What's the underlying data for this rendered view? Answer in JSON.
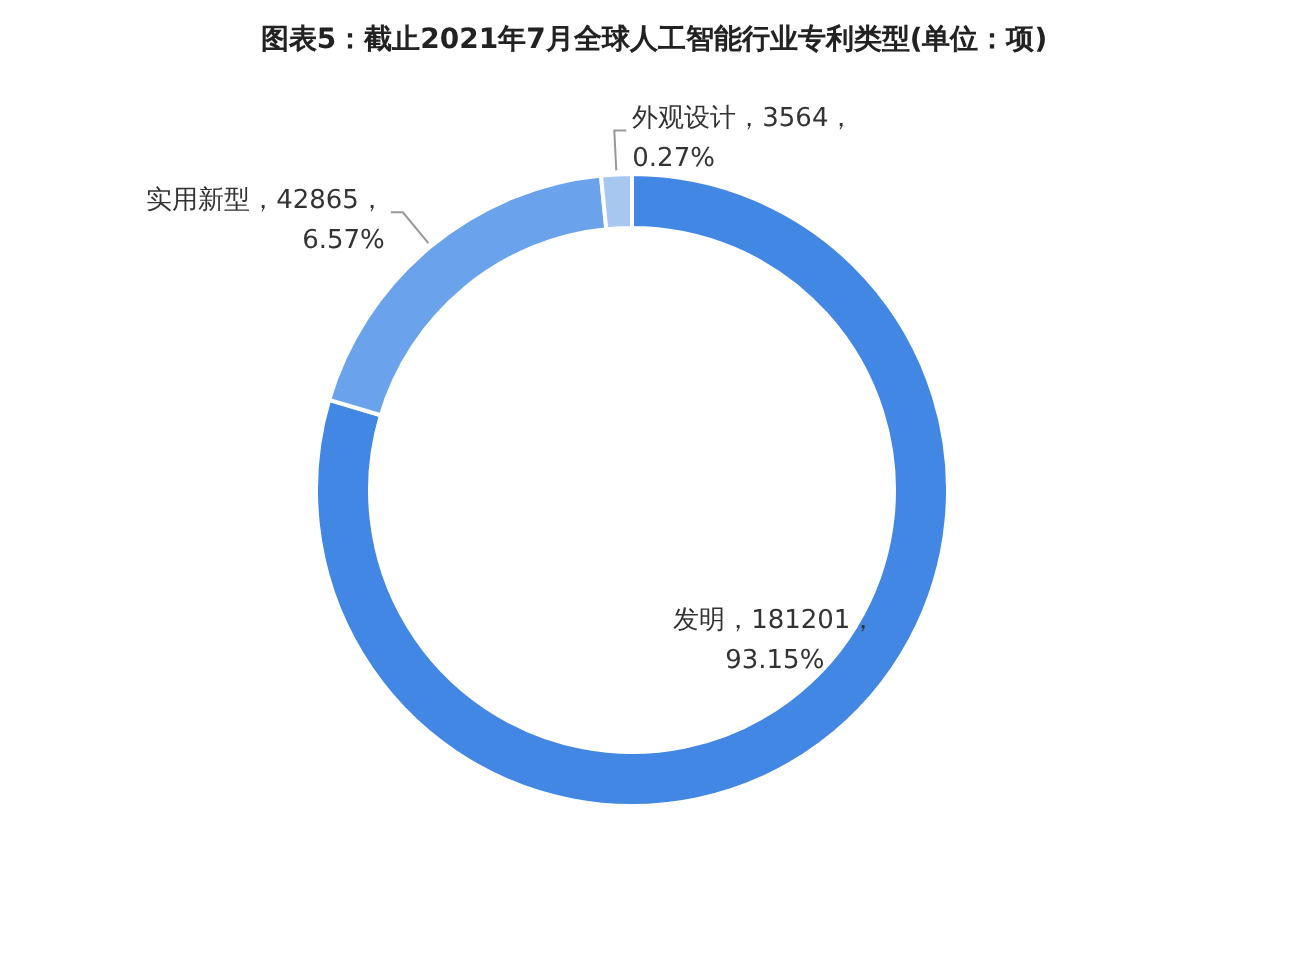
{
  "chart_data": {
    "type": "donut",
    "title": "图表5：截止2021年7月全球人工智能行业专利类型(单位：项)",
    "categories": [
      "发明",
      "实用新型",
      "外观设计"
    ],
    "values": [
      181201,
      42865,
      3564
    ],
    "value_labels": [
      "181201，93.15%",
      "42865，6.57%",
      "3564，0.27%"
    ],
    "colors": [
      "#4287e3",
      "#6aa3ec",
      "#a8c7f0"
    ],
    "legend": false
  }
}
